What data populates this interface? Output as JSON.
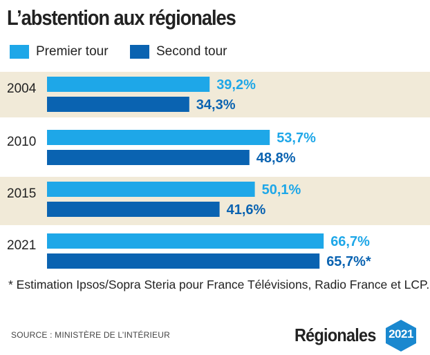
{
  "title": "L’abstention aux régionales",
  "legend": [
    {
      "label": "Premier tour",
      "color": "#1ea7e8"
    },
    {
      "label": "Second tour",
      "color": "#0a63b1"
    }
  ],
  "chart_data": {
    "type": "bar",
    "orientation": "horizontal",
    "categories": [
      "2004",
      "2010",
      "2015",
      "2021"
    ],
    "series": [
      {
        "name": "Premier tour",
        "values": [
          39.2,
          53.7,
          50.1,
          66.7
        ],
        "labels": [
          "39,2%",
          "53,7%",
          "50,1%",
          "66,7%"
        ],
        "color": "#1ea7e8"
      },
      {
        "name": "Second tour",
        "values": [
          34.3,
          48.8,
          41.6,
          65.7
        ],
        "labels": [
          "34,3%",
          "48,8%",
          "41,6%",
          "65,7%*"
        ],
        "color": "#0a63b1"
      }
    ],
    "xlim": [
      0,
      100
    ],
    "band_color": "#f1ead8"
  },
  "note": "* Estimation Ipsos/Sopra Steria pour France Télévisions, Radio France et LCP.",
  "source": "SOURCE : MINISTÈRE DE L’INTÉRIEUR",
  "brand": {
    "name": "Régionales",
    "year": "2021",
    "badge_color": "#1a88cf"
  }
}
